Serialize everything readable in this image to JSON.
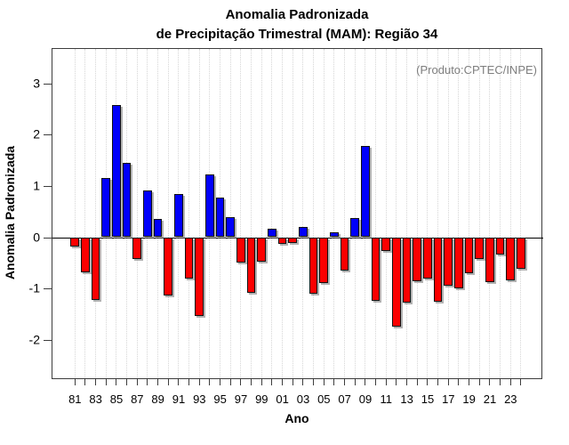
{
  "page": {
    "title_line1": "Anomalia Padronizada",
    "title_line2": "de Precipitação Trimestral (MAM): Região 34",
    "annotation": "(Produto:CPTEC/INPE)"
  },
  "chart_data": {
    "type": "bar",
    "title": "Anomalia Padronizada de Precipitação Trimestral (MAM): Região 34",
    "xlabel": "Ano",
    "ylabel": "Anomalia Padronizada",
    "annotation": "(Produto:CPTEC/INPE)",
    "years": [
      1981,
      1982,
      1983,
      1984,
      1985,
      1986,
      1987,
      1988,
      1989,
      1990,
      1991,
      1992,
      1993,
      1994,
      1995,
      1996,
      1997,
      1998,
      1999,
      2000,
      2001,
      2002,
      2003,
      2004,
      2005,
      2006,
      2007,
      2008,
      2009,
      2010,
      2011,
      2012,
      2013,
      2014,
      2015,
      2016,
      2017,
      2018,
      2019,
      2020,
      2021,
      2022,
      2023,
      2024
    ],
    "values": [
      -0.19,
      -0.69,
      -1.22,
      1.16,
      2.57,
      1.45,
      -0.43,
      0.92,
      0.35,
      -1.13,
      0.85,
      -0.8,
      -1.53,
      1.22,
      0.77,
      0.39,
      -0.5,
      -1.08,
      -0.47,
      0.17,
      -0.13,
      -0.12,
      0.2,
      -1.11,
      -0.9,
      0.09,
      -0.65,
      0.38,
      1.78,
      -1.24,
      -0.27,
      -1.75,
      -1.28,
      -0.86,
      -0.8,
      -1.25,
      -0.94,
      -0.99,
      -0.7,
      -0.43,
      -0.88,
      -0.33,
      -0.85,
      -0.62
    ],
    "x_tick_labels": [
      "81",
      "83",
      "85",
      "87",
      "89",
      "91",
      "93",
      "95",
      "97",
      "99",
      "01",
      "03",
      "05",
      "07",
      "09",
      "11",
      "13",
      "15",
      "17",
      "19",
      "21",
      "23"
    ],
    "yticks": [
      -2,
      -1,
      0,
      1,
      2,
      3
    ],
    "ylim": [
      -2.78,
      3.69
    ],
    "grid": "vertical dotted line per year",
    "legend_position": "none",
    "positive_color": "#0000fb",
    "negative_color": "#fb0000",
    "bar_border_color": "#101010",
    "axis_color": "#3d3d3d",
    "annotation_color": "#7e7e7e"
  }
}
